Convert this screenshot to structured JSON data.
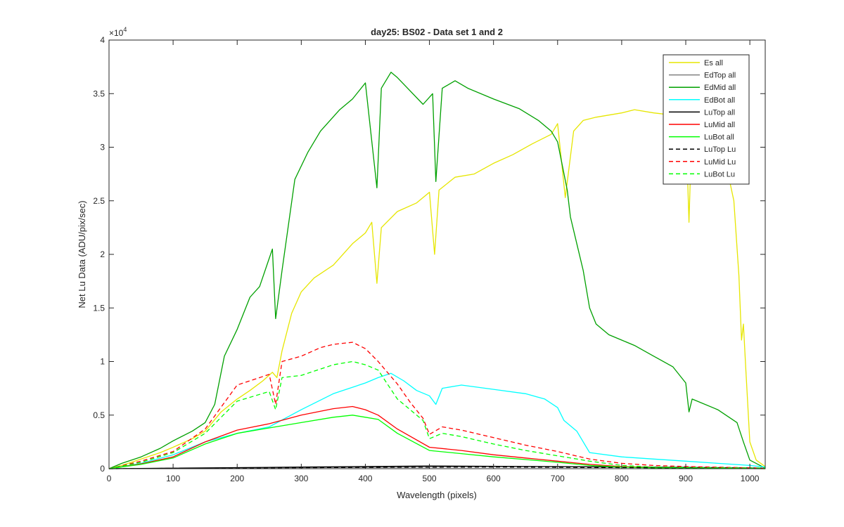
{
  "chart_data": {
    "type": "line",
    "title": "day25: BS02 - Data set 1 and 2",
    "xlabel": "Wavelength (pixels)",
    "ylabel": "Net Lu Data (ADU/pix/sec)",
    "xlim": [
      0,
      1024
    ],
    "ylim": [
      0,
      40000
    ],
    "x_ticks": [
      0,
      100,
      200,
      300,
      400,
      500,
      600,
      700,
      800,
      900,
      1000
    ],
    "y_ticks": [
      0,
      5000,
      10000,
      15000,
      20000,
      25000,
      30000,
      35000,
      40000
    ],
    "y_tick_labels": [
      "0",
      "0.5",
      "1",
      "1.5",
      "2",
      "2.5",
      "3",
      "3.5",
      "4"
    ],
    "y_exponent_base": "×10",
    "y_exponent_power": "4",
    "grid": false,
    "legend_position": "top-right",
    "series": [
      {
        "name": "Es  all",
        "color": "#e6e600",
        "dash": false,
        "points": [
          [
            0,
            0
          ],
          [
            20,
            300
          ],
          [
            50,
            900
          ],
          [
            80,
            1500
          ],
          [
            100,
            2000
          ],
          [
            130,
            2800
          ],
          [
            150,
            3500
          ],
          [
            175,
            5300
          ],
          [
            200,
            6500
          ],
          [
            220,
            7300
          ],
          [
            240,
            8200
          ],
          [
            255,
            9000
          ],
          [
            262,
            8500
          ],
          [
            270,
            11000
          ],
          [
            285,
            14500
          ],
          [
            300,
            16500
          ],
          [
            320,
            17800
          ],
          [
            350,
            19000
          ],
          [
            380,
            21000
          ],
          [
            400,
            22000
          ],
          [
            410,
            23000
          ],
          [
            418,
            17300
          ],
          [
            425,
            22500
          ],
          [
            450,
            24000
          ],
          [
            480,
            24800
          ],
          [
            500,
            25800
          ],
          [
            508,
            20000
          ],
          [
            515,
            26000
          ],
          [
            540,
            27200
          ],
          [
            570,
            27500
          ],
          [
            600,
            28500
          ],
          [
            630,
            29300
          ],
          [
            660,
            30300
          ],
          [
            690,
            31200
          ],
          [
            700,
            32200
          ],
          [
            712,
            25300
          ],
          [
            725,
            31500
          ],
          [
            740,
            32500
          ],
          [
            760,
            32800
          ],
          [
            800,
            33200
          ],
          [
            820,
            33500
          ],
          [
            850,
            33200
          ],
          [
            880,
            33000
          ],
          [
            900,
            32500
          ],
          [
            905,
            23000
          ],
          [
            910,
            32800
          ],
          [
            950,
            32000
          ],
          [
            975,
            25000
          ],
          [
            983,
            18000
          ],
          [
            987,
            12000
          ],
          [
            990,
            13500
          ],
          [
            993,
            10000
          ],
          [
            1000,
            2500
          ],
          [
            1010,
            800
          ],
          [
            1024,
            200
          ]
        ]
      },
      {
        "name": "EdTop  all",
        "color": "#808080",
        "dash": false,
        "points": [
          [
            0,
            0
          ],
          [
            300,
            100
          ],
          [
            600,
            200
          ],
          [
            900,
            150
          ],
          [
            1024,
            50
          ]
        ]
      },
      {
        "name": "EdMid  all",
        "color": "#00a000",
        "dash": false,
        "points": [
          [
            0,
            0
          ],
          [
            20,
            500
          ],
          [
            50,
            1100
          ],
          [
            80,
            1900
          ],
          [
            100,
            2600
          ],
          [
            130,
            3500
          ],
          [
            150,
            4300
          ],
          [
            165,
            6000
          ],
          [
            180,
            10500
          ],
          [
            200,
            13000
          ],
          [
            220,
            16000
          ],
          [
            235,
            17000
          ],
          [
            255,
            20500
          ],
          [
            260,
            14000
          ],
          [
            270,
            18500
          ],
          [
            290,
            27000
          ],
          [
            310,
            29500
          ],
          [
            330,
            31500
          ],
          [
            360,
            33500
          ],
          [
            380,
            34500
          ],
          [
            400,
            36000
          ],
          [
            418,
            26200
          ],
          [
            425,
            35500
          ],
          [
            440,
            37000
          ],
          [
            450,
            36500
          ],
          [
            490,
            34000
          ],
          [
            505,
            35000
          ],
          [
            510,
            26800
          ],
          [
            520,
            35500
          ],
          [
            540,
            36200
          ],
          [
            560,
            35500
          ],
          [
            600,
            34500
          ],
          [
            640,
            33600
          ],
          [
            670,
            32500
          ],
          [
            690,
            31500
          ],
          [
            700,
            30500
          ],
          [
            715,
            26000
          ],
          [
            720,
            23500
          ],
          [
            730,
            21000
          ],
          [
            740,
            18500
          ],
          [
            750,
            15000
          ],
          [
            760,
            13500
          ],
          [
            780,
            12500
          ],
          [
            800,
            12000
          ],
          [
            820,
            11500
          ],
          [
            850,
            10500
          ],
          [
            880,
            9500
          ],
          [
            900,
            8000
          ],
          [
            905,
            5300
          ],
          [
            910,
            6500
          ],
          [
            950,
            5500
          ],
          [
            980,
            4300
          ],
          [
            990,
            2500
          ],
          [
            1000,
            800
          ],
          [
            1024,
            50
          ]
        ]
      },
      {
        "name": "EdBot  all",
        "color": "#00ffff",
        "dash": false,
        "points": [
          [
            0,
            0
          ],
          [
            50,
            500
          ],
          [
            100,
            1300
          ],
          [
            150,
            2500
          ],
          [
            200,
            3300
          ],
          [
            250,
            3900
          ],
          [
            300,
            5500
          ],
          [
            350,
            7000
          ],
          [
            400,
            8000
          ],
          [
            420,
            8500
          ],
          [
            440,
            8900
          ],
          [
            460,
            8200
          ],
          [
            480,
            7300
          ],
          [
            500,
            6800
          ],
          [
            510,
            6000
          ],
          [
            520,
            7500
          ],
          [
            550,
            7800
          ],
          [
            600,
            7400
          ],
          [
            650,
            7000
          ],
          [
            680,
            6500
          ],
          [
            700,
            5700
          ],
          [
            710,
            4500
          ],
          [
            730,
            3500
          ],
          [
            750,
            1500
          ],
          [
            800,
            1100
          ],
          [
            850,
            900
          ],
          [
            900,
            700
          ],
          [
            950,
            500
          ],
          [
            1000,
            300
          ],
          [
            1024,
            150
          ]
        ]
      },
      {
        "name": "LuTop  all",
        "color": "#000000",
        "dash": false,
        "points": [
          [
            0,
            0
          ],
          [
            300,
            150
          ],
          [
            500,
            250
          ],
          [
            700,
            200
          ],
          [
            900,
            100
          ],
          [
            1024,
            50
          ]
        ]
      },
      {
        "name": "LuMid  all",
        "color": "#ff0000",
        "dash": false,
        "points": [
          [
            0,
            0
          ],
          [
            50,
            450
          ],
          [
            100,
            1100
          ],
          [
            150,
            2500
          ],
          [
            200,
            3600
          ],
          [
            250,
            4200
          ],
          [
            300,
            5000
          ],
          [
            350,
            5600
          ],
          [
            380,
            5800
          ],
          [
            400,
            5500
          ],
          [
            420,
            5000
          ],
          [
            450,
            3700
          ],
          [
            500,
            2000
          ],
          [
            550,
            1700
          ],
          [
            600,
            1300
          ],
          [
            650,
            1000
          ],
          [
            700,
            700
          ],
          [
            750,
            400
          ],
          [
            800,
            200
          ],
          [
            850,
            100
          ],
          [
            900,
            50
          ],
          [
            1024,
            0
          ]
        ]
      },
      {
        "name": "LuBot  all",
        "color": "#00ff00",
        "dash": false,
        "points": [
          [
            0,
            0
          ],
          [
            50,
            400
          ],
          [
            100,
            1000
          ],
          [
            150,
            2300
          ],
          [
            200,
            3300
          ],
          [
            250,
            3800
          ],
          [
            300,
            4300
          ],
          [
            350,
            4800
          ],
          [
            380,
            5000
          ],
          [
            400,
            4800
          ],
          [
            420,
            4600
          ],
          [
            450,
            3300
          ],
          [
            500,
            1700
          ],
          [
            550,
            1400
          ],
          [
            600,
            1100
          ],
          [
            650,
            850
          ],
          [
            700,
            600
          ],
          [
            750,
            300
          ],
          [
            800,
            150
          ],
          [
            850,
            80
          ],
          [
            900,
            50
          ],
          [
            1024,
            0
          ]
        ]
      },
      {
        "name": "LuTop  Lu",
        "color": "#000000",
        "dash": true,
        "points": [
          [
            0,
            0
          ],
          [
            300,
            100
          ],
          [
            600,
            150
          ],
          [
            900,
            80
          ],
          [
            1024,
            30
          ]
        ]
      },
      {
        "name": "LuMid  Lu",
        "color": "#ff0000",
        "dash": true,
        "points": [
          [
            0,
            0
          ],
          [
            50,
            700
          ],
          [
            100,
            1600
          ],
          [
            150,
            3700
          ],
          [
            200,
            7800
          ],
          [
            250,
            8800
          ],
          [
            260,
            6000
          ],
          [
            270,
            10000
          ],
          [
            300,
            10500
          ],
          [
            330,
            11300
          ],
          [
            350,
            11600
          ],
          [
            380,
            11800
          ],
          [
            400,
            11200
          ],
          [
            420,
            10000
          ],
          [
            450,
            7900
          ],
          [
            470,
            6200
          ],
          [
            490,
            4700
          ],
          [
            500,
            3200
          ],
          [
            520,
            3900
          ],
          [
            550,
            3600
          ],
          [
            600,
            2900
          ],
          [
            650,
            2200
          ],
          [
            700,
            1600
          ],
          [
            750,
            900
          ],
          [
            800,
            500
          ],
          [
            850,
            300
          ],
          [
            900,
            200
          ],
          [
            1024,
            50
          ]
        ]
      },
      {
        "name": "LuBot  Lu",
        "color": "#00ff00",
        "dash": true,
        "points": [
          [
            0,
            0
          ],
          [
            50,
            600
          ],
          [
            100,
            1500
          ],
          [
            150,
            3300
          ],
          [
            200,
            6300
          ],
          [
            250,
            7200
          ],
          [
            260,
            5500
          ],
          [
            270,
            8500
          ],
          [
            300,
            8700
          ],
          [
            330,
            9300
          ],
          [
            350,
            9700
          ],
          [
            380,
            10000
          ],
          [
            400,
            9700
          ],
          [
            420,
            9200
          ],
          [
            450,
            6500
          ],
          [
            470,
            5500
          ],
          [
            490,
            4500
          ],
          [
            500,
            2800
          ],
          [
            520,
            3300
          ],
          [
            550,
            3000
          ],
          [
            600,
            2300
          ],
          [
            650,
            1700
          ],
          [
            700,
            1200
          ],
          [
            750,
            700
          ],
          [
            800,
            300
          ],
          [
            850,
            150
          ],
          [
            900,
            100
          ],
          [
            1024,
            50
          ]
        ]
      }
    ]
  }
}
